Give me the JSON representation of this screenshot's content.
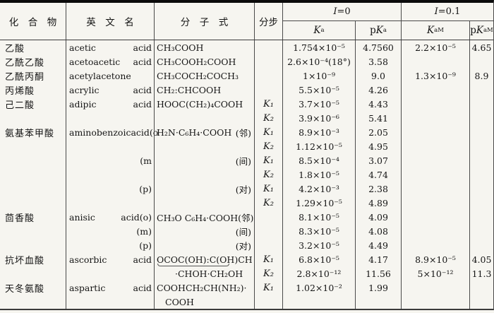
{
  "header": {
    "col_compound": "化　合　物",
    "col_english": "英　文　名",
    "col_formula": "分　子　式",
    "col_step": "分步",
    "i0": {
      "it": "I",
      "rest": "=0"
    },
    "i01": {
      "it": "I",
      "rest": "=0.1"
    },
    "ka": {
      "pre": "",
      "base": "K",
      "sub": "a",
      "sup": ""
    },
    "pka": {
      "pre": "p",
      "base": "K",
      "sub": "a",
      "sup": ""
    },
    "kam": {
      "pre": "",
      "base": "K",
      "sub": "a",
      "sup": "M"
    },
    "pkam": {
      "pre": "p",
      "base": "K",
      "sub": "a",
      "sup": "M"
    }
  },
  "rows": [
    {
      "c": "乙酸",
      "n": "acetic",
      "a": "acid",
      "f": "CH₃COOH",
      "fr": "",
      "s": "",
      "ka": "1.754×10⁻⁵",
      "pka": "4.7560",
      "kam": "2.2×10⁻⁵",
      "pkam": "4.65"
    },
    {
      "c": "乙酰乙酸",
      "n": "acetoacetic",
      "a": "acid",
      "f": "CH₃COOH₂COOH",
      "fr": "",
      "s": "",
      "ka": "2.6×10⁻⁴(18°)",
      "pka": "3.58",
      "kam": "",
      "pkam": ""
    },
    {
      "c": "乙酰丙酮",
      "n": "acetylacetone",
      "a": "",
      "f": "CH₃COCH₂COCH₃",
      "fr": "",
      "s": "",
      "ka": "1×10⁻⁹",
      "pka": "9.0",
      "kam": "1.3×10⁻⁹",
      "pkam": "8.9"
    },
    {
      "c": "丙烯酸",
      "n": "acrylic",
      "a": "acid",
      "f": "CH₂:CHCOOH",
      "fr": "",
      "s": "",
      "ka": "5.5×10⁻⁵",
      "pka": "4.26",
      "kam": "",
      "pkam": ""
    },
    {
      "c": "己二酸",
      "n": "adipic",
      "a": "acid",
      "f": "HOOC(CH₂)₄COOH",
      "fr": "",
      "s": "K₁",
      "ka": "3.7×10⁻⁵",
      "pka": "4.43",
      "kam": "",
      "pkam": ""
    },
    {
      "c": "",
      "n": "",
      "a": "",
      "f": "",
      "fr": "",
      "s": "K₂",
      "ka": "3.9×10⁻⁶",
      "pka": "5.41",
      "kam": "",
      "pkam": ""
    },
    {
      "c": "氨基苯甲酸",
      "n": "aminobenzoic",
      "a": "acid(o",
      "f": "H₂N·C₆H₄·COOH",
      "fr": "(邻)",
      "s": "K₁",
      "ka": "8.9×10⁻³",
      "pka": "2.05",
      "kam": "",
      "pkam": ""
    },
    {
      "c": "",
      "n": "",
      "a": "",
      "f": "",
      "fr": "",
      "s": "K₂",
      "ka": "1.12×10⁻⁵",
      "pka": "4.95",
      "kam": "",
      "pkam": ""
    },
    {
      "c": "",
      "n": "",
      "a": "(m",
      "f": "",
      "fr": "(间)",
      "s": "K₁",
      "ka": "8.5×10⁻⁴",
      "pka": "3.07",
      "kam": "",
      "pkam": ""
    },
    {
      "c": "",
      "n": "",
      "a": "",
      "f": "",
      "fr": "",
      "s": "K₂",
      "ka": "1.8×10⁻⁵",
      "pka": "4.74",
      "kam": "",
      "pkam": ""
    },
    {
      "c": "",
      "n": "",
      "a": "(p)",
      "f": "",
      "fr": "(对)",
      "s": "K₁",
      "ka": "4.2×10⁻³",
      "pka": "2.38",
      "kam": "",
      "pkam": ""
    },
    {
      "c": "",
      "n": "",
      "a": "",
      "f": "",
      "fr": "",
      "s": "K₂",
      "ka": "1.29×10⁻⁵",
      "pka": "4.89",
      "kam": "",
      "pkam": ""
    },
    {
      "c": "茴香酸",
      "n": "anisic",
      "a": "acid(o)",
      "f": "CH₃O C₆H₄·COOH(邻)",
      "fr": "",
      "s": "",
      "ka": "8.1×10⁻⁵",
      "pka": "4.09",
      "kam": "",
      "pkam": ""
    },
    {
      "c": "",
      "n": "",
      "a": "(m)",
      "f": "",
      "fr": "(间)",
      "s": "",
      "ka": "8.3×10⁻⁵",
      "pka": "4.08",
      "kam": "",
      "pkam": ""
    },
    {
      "c": "",
      "n": "",
      "a": "(p)",
      "f": "",
      "fr": "(对)",
      "s": "",
      "ka": "3.2×10⁻⁵",
      "pka": "4.49",
      "kam": "",
      "pkam": ""
    },
    {
      "c": "抗坏血酸",
      "n": "ascorbic",
      "a": "acid",
      "f": "OCOC(OH):C(OH)CH",
      "fr": "",
      "ub": true,
      "s": "K₁",
      "ka": "6.8×10⁻⁵",
      "pka": "4.17",
      "kam": "8.9×10⁻⁵",
      "pkam": "4.05"
    },
    {
      "c": "",
      "n": "",
      "a": "",
      "f": "·CHOH·CH₂OH",
      "fr": "",
      "findent": 26,
      "s": "K₂",
      "ka": "2.8×10⁻¹²",
      "pka": "11.56",
      "kam": "5×10⁻¹²",
      "pkam": "11.3"
    },
    {
      "c": "天冬氨酸",
      "n": "aspartic",
      "a": "acid",
      "f": "COOHCH₂CH(NH₂)·",
      "fr": "",
      "s": "K₁",
      "ka": "1.02×10⁻²",
      "pka": "1.99",
      "kam": "",
      "pkam": ""
    },
    {
      "c": "",
      "n": "",
      "a": "",
      "f": "COOH",
      "fr": "",
      "findent": 12,
      "s": "",
      "ka": "",
      "pka": "",
      "kam": "",
      "pkam": ""
    }
  ]
}
